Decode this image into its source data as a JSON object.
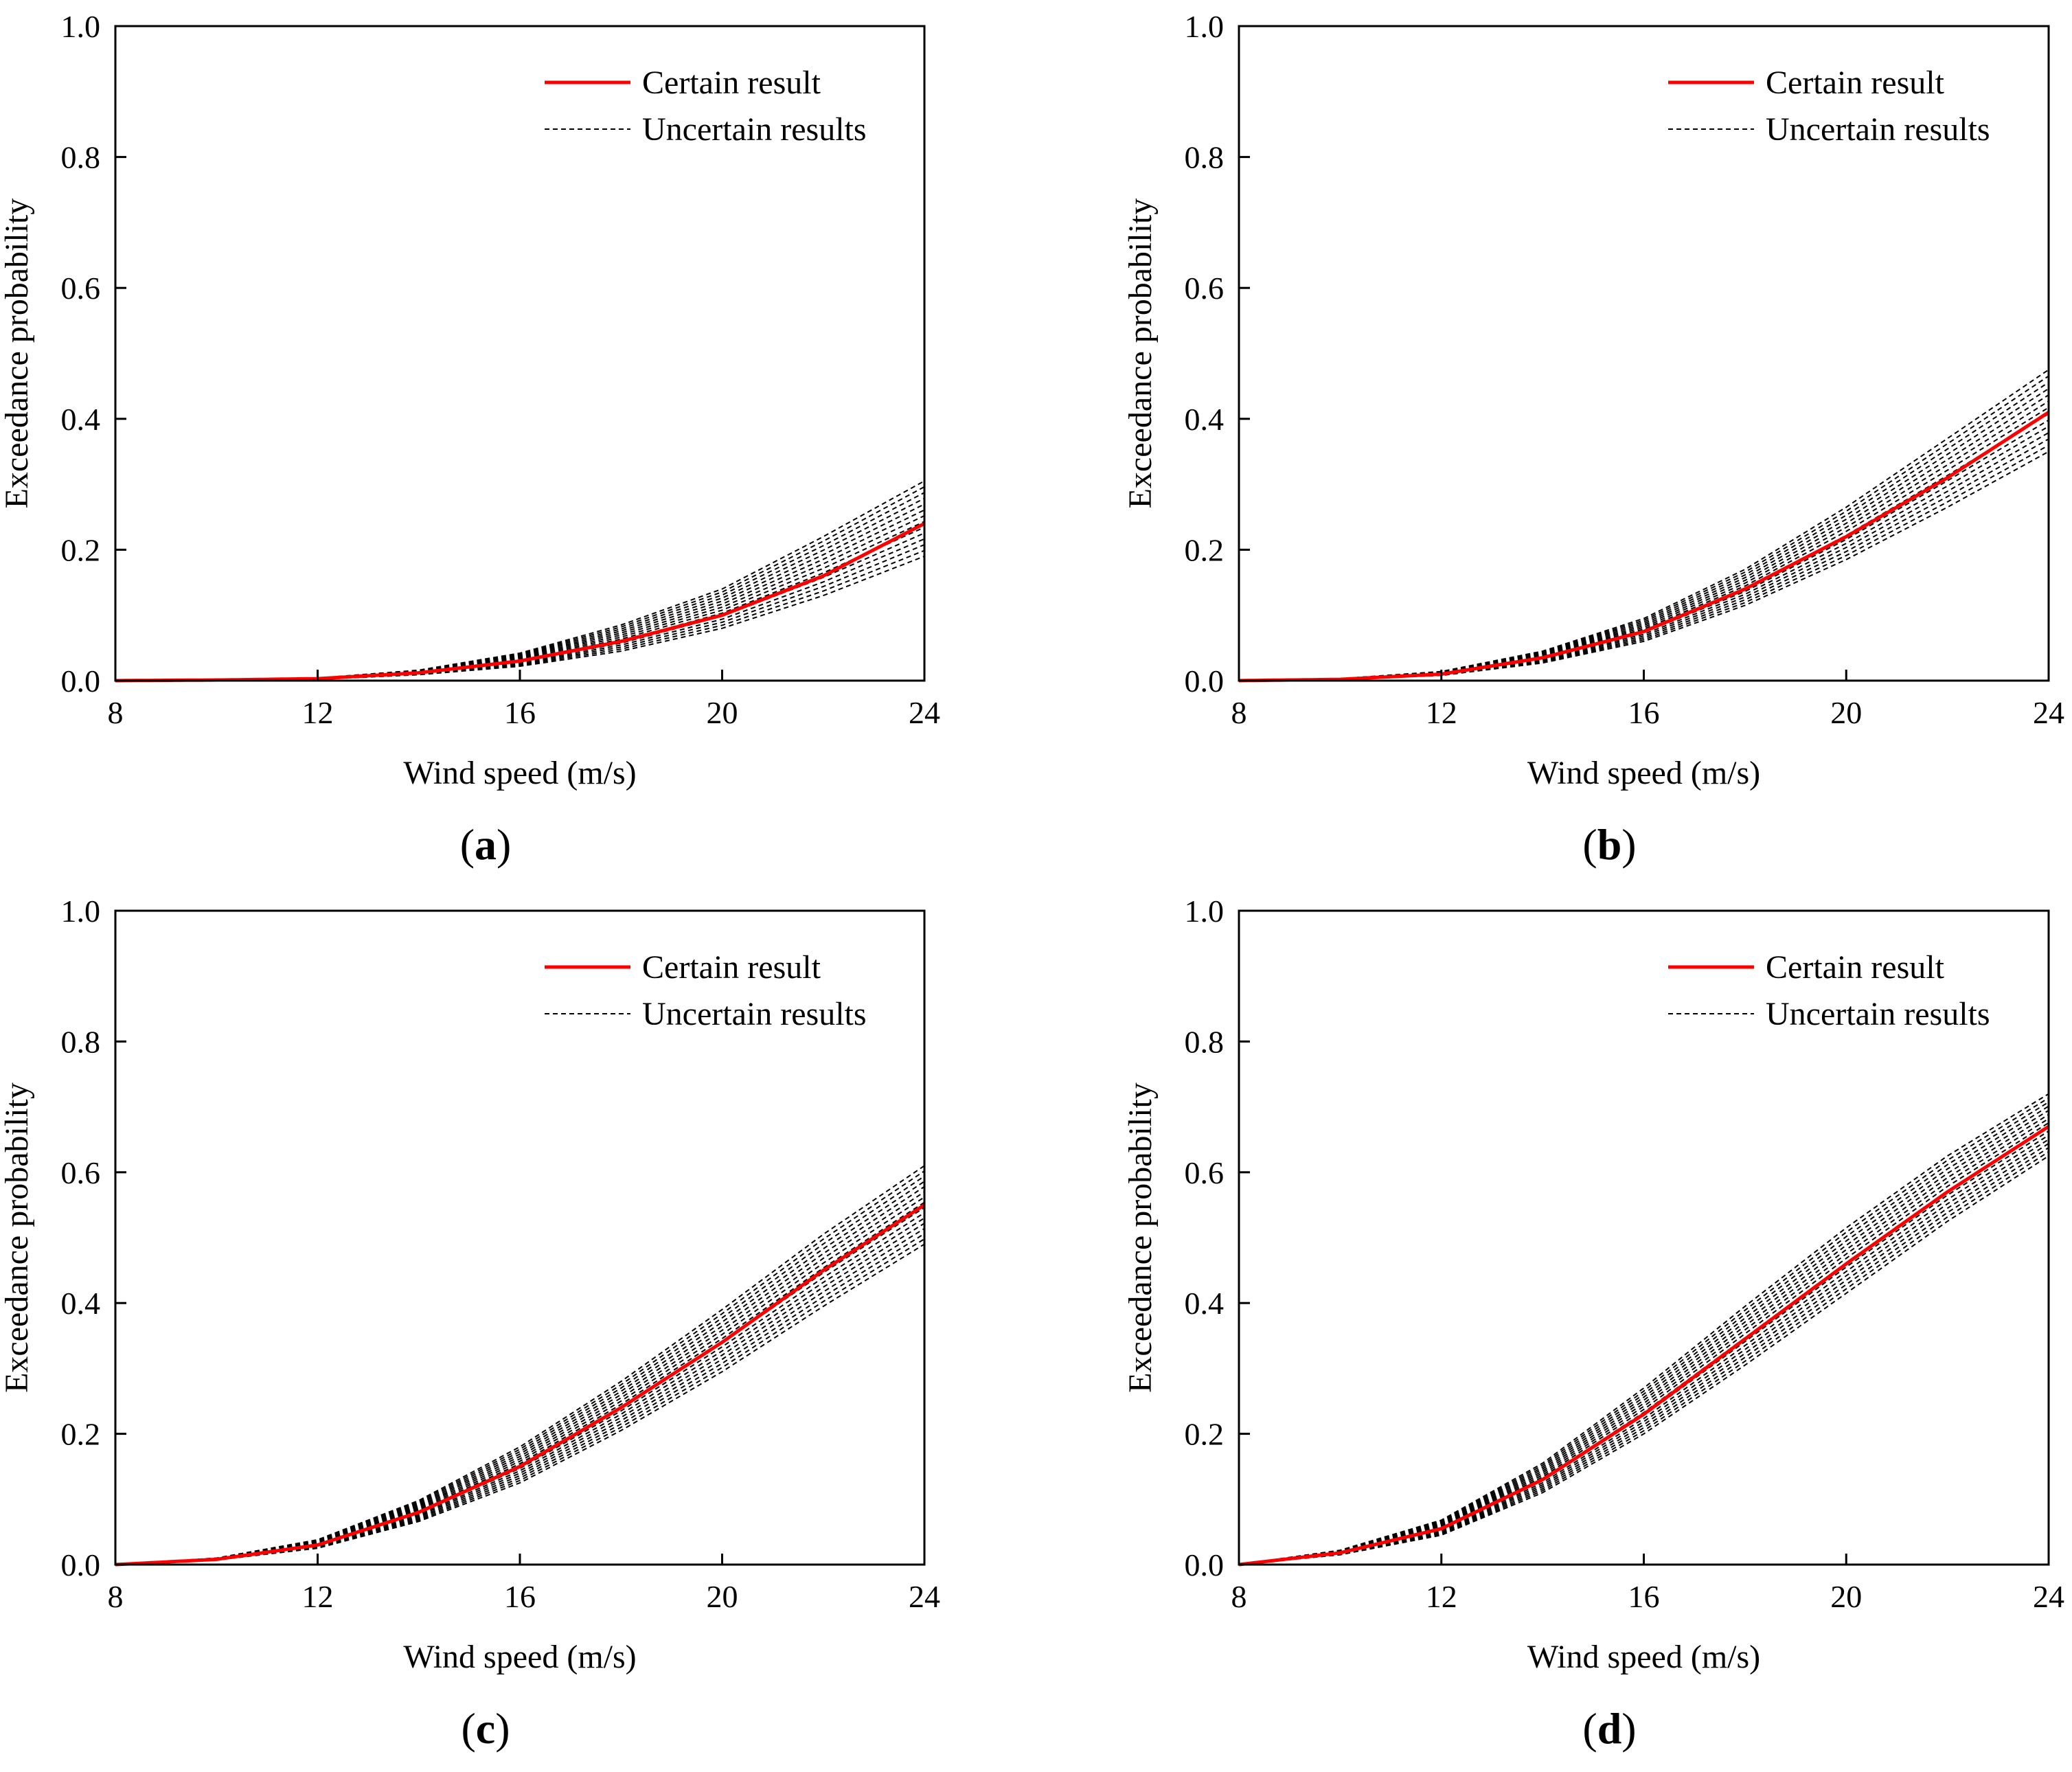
{
  "figure": {
    "legend_certain": "Certain result",
    "legend_uncertain": "Uncertain results",
    "colors": {
      "certain": "#ff0000",
      "uncertain": "#000000",
      "axis": "#000000"
    }
  },
  "chart_data": [
    {
      "type": "line",
      "panel": "a",
      "panel_label": "(a)",
      "xlabel": "Wind speed (m/s)",
      "ylabel": "Exceedance probability",
      "xlim": [
        8,
        24
      ],
      "ylim": [
        0,
        1.0
      ],
      "xticks": [
        "8",
        "12",
        "16",
        "20",
        "24"
      ],
      "yticks": [
        "0.0",
        "0.2",
        "0.4",
        "0.6",
        "0.8",
        "1.0"
      ],
      "legend": [
        "Certain result",
        "Uncertain results"
      ],
      "x": [
        8,
        10,
        12,
        14,
        16,
        18,
        20,
        22,
        24
      ],
      "series": [
        {
          "name": "Certain result",
          "values": [
            0,
            0.001,
            0.003,
            0.012,
            0.03,
            0.06,
            0.1,
            0.16,
            0.24
          ]
        },
        {
          "name": "Uncertain results (upper bound)",
          "values": [
            0,
            0.001,
            0.004,
            0.016,
            0.042,
            0.085,
            0.14,
            0.22,
            0.305
          ]
        },
        {
          "name": "Uncertain results (lower bound)",
          "values": [
            0,
            0.0005,
            0.002,
            0.009,
            0.022,
            0.045,
            0.08,
            0.13,
            0.19
          ]
        }
      ],
      "uncertain_count": 14
    },
    {
      "type": "line",
      "panel": "b",
      "panel_label": "(b)",
      "xlabel": "Wind speed (m/s)",
      "ylabel": "Exceedance probability",
      "xlim": [
        8,
        24
      ],
      "ylim": [
        0,
        1.0
      ],
      "xticks": [
        "8",
        "12",
        "16",
        "20",
        "24"
      ],
      "yticks": [
        "0.0",
        "0.2",
        "0.4",
        "0.6",
        "0.8",
        "1.0"
      ],
      "legend": [
        "Certain result",
        "Uncertain results"
      ],
      "x": [
        8,
        10,
        12,
        14,
        16,
        18,
        20,
        22,
        24
      ],
      "series": [
        {
          "name": "Certain result",
          "values": [
            0,
            0.002,
            0.01,
            0.035,
            0.075,
            0.14,
            0.22,
            0.31,
            0.41
          ]
        },
        {
          "name": "Uncertain results (upper bound)",
          "values": [
            0,
            0.003,
            0.014,
            0.045,
            0.095,
            0.17,
            0.265,
            0.37,
            0.475
          ]
        },
        {
          "name": "Uncertain results (lower bound)",
          "values": [
            0,
            0.0015,
            0.008,
            0.027,
            0.06,
            0.115,
            0.185,
            0.265,
            0.35
          ]
        }
      ],
      "uncertain_count": 14
    },
    {
      "type": "line",
      "panel": "c",
      "panel_label": "(c)",
      "xlabel": "Wind speed (m/s)",
      "ylabel": "Exceedance probability",
      "xlim": [
        8,
        24
      ],
      "ylim": [
        0,
        1.0
      ],
      "xticks": [
        "8",
        "12",
        "16",
        "20",
        "24"
      ],
      "yticks": [
        "0.0",
        "0.2",
        "0.4",
        "0.6",
        "0.8",
        "1.0"
      ],
      "legend": [
        "Certain result",
        "Uncertain results"
      ],
      "x": [
        8,
        10,
        12,
        14,
        16,
        18,
        20,
        22,
        24
      ],
      "series": [
        {
          "name": "Certain result",
          "values": [
            0,
            0.008,
            0.03,
            0.08,
            0.15,
            0.24,
            0.34,
            0.45,
            0.55
          ]
        },
        {
          "name": "Uncertain results (upper bound)",
          "values": [
            0,
            0.01,
            0.038,
            0.098,
            0.18,
            0.28,
            0.39,
            0.505,
            0.61
          ]
        },
        {
          "name": "Uncertain results (lower bound)",
          "values": [
            0,
            0.007,
            0.025,
            0.066,
            0.125,
            0.205,
            0.295,
            0.395,
            0.49
          ]
        }
      ],
      "uncertain_count": 16
    },
    {
      "type": "line",
      "panel": "d",
      "panel_label": "(d)",
      "xlabel": "Wind speed (m/s)",
      "ylabel": "Exceedance probability",
      "xlim": [
        8,
        24
      ],
      "ylim": [
        0,
        1.0
      ],
      "xticks": [
        "8",
        "12",
        "16",
        "20",
        "24"
      ],
      "yticks": [
        "0.0",
        "0.2",
        "0.4",
        "0.6",
        "0.8",
        "1.0"
      ],
      "legend": [
        "Certain result",
        "Uncertain results"
      ],
      "x": [
        8,
        10,
        12,
        14,
        16,
        18,
        20,
        22,
        24
      ],
      "series": [
        {
          "name": "Certain result",
          "values": [
            0,
            0.018,
            0.055,
            0.13,
            0.23,
            0.345,
            0.46,
            0.57,
            0.67
          ]
        },
        {
          "name": "Uncertain results (upper bound)",
          "values": [
            0,
            0.022,
            0.068,
            0.155,
            0.27,
            0.395,
            0.515,
            0.625,
            0.72
          ]
        },
        {
          "name": "Uncertain results (lower bound)",
          "values": [
            0,
            0.015,
            0.045,
            0.11,
            0.2,
            0.305,
            0.415,
            0.525,
            0.625
          ]
        }
      ],
      "uncertain_count": 16
    }
  ]
}
